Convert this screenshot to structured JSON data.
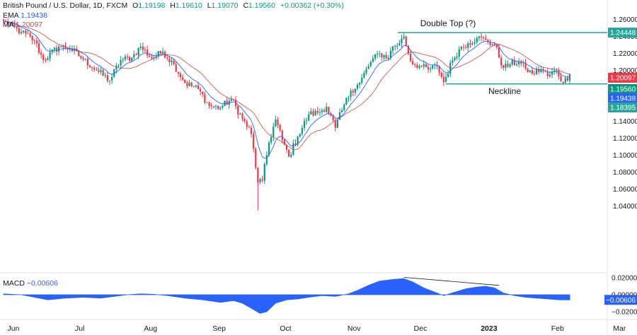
{
  "header": {
    "symbol": "British Pound / U.S. Dollar, 1D, FXCM",
    "o_label": "O",
    "o": "1.19198",
    "h_label": "H",
    "h": "1.19610",
    "l_label": "L",
    "l": "1.19070",
    "c_label": "C",
    "c": "1.19560",
    "change": "+0.00362 (+0.30%)",
    "ema_label": "EMA",
    "ema_value": "1.19438",
    "ma_label": "MA",
    "ma_value": "1.20097"
  },
  "macd": {
    "label": "MACD",
    "value": "−0.00606"
  },
  "colors": {
    "up": "#089981",
    "down": "#f23645",
    "ema": "#2962ff",
    "ma": "#c0504d",
    "teal": "#26a69a",
    "macd_fill": "#2962ff"
  },
  "chart_data": [
    {
      "type": "candlestick",
      "title": "British Pound / U.S. Dollar, 1D, FXCM",
      "price_axis": {
        "ylim": [
          1.03,
          1.27
        ],
        "ticks": [
          "1.26000",
          "1.24000",
          "1.22000",
          "1.20000",
          "1.18000",
          "1.16000",
          "1.14000",
          "1.12000",
          "1.10000",
          "1.08000",
          "1.06000",
          "1.04000"
        ]
      },
      "time_axis": {
        "labels": [
          "Jun",
          "Jul",
          "Aug",
          "Sep",
          "Oct",
          "Nov",
          "Dec",
          "2023",
          "Feb",
          "Mar"
        ]
      },
      "price_tags": [
        {
          "text": "1.24448",
          "value": 1.24448,
          "color": "#26a69a"
        },
        {
          "text": "1.20097",
          "value": 1.20097,
          "color": "#f23645"
        },
        {
          "text": "1.19560",
          "value": 1.1956,
          "color": "#089981"
        },
        {
          "text": "1.19438",
          "value": 1.19438,
          "color": "#2962ff"
        },
        {
          "text": "1.18395",
          "value": 1.18395,
          "color": "#26a69a"
        }
      ],
      "annotations": [
        {
          "text": "Double Top (?)",
          "level": 1.24448
        },
        {
          "text": "Neckline",
          "level": 1.18395
        }
      ],
      "series": [
        {
          "name": "EMA",
          "value": 1.19438
        },
        {
          "name": "MA",
          "value": 1.20097
        }
      ],
      "anchors": [
        {
          "d": 0,
          "c": 1.258
        },
        {
          "d": 8,
          "c": 1.245
        },
        {
          "d": 14,
          "c": 1.235
        },
        {
          "d": 18,
          "c": 1.212
        },
        {
          "d": 25,
          "c": 1.228
        },
        {
          "d": 30,
          "c": 1.226
        },
        {
          "d": 36,
          "c": 1.213
        },
        {
          "d": 42,
          "c": 1.2
        },
        {
          "d": 48,
          "c": 1.188
        },
        {
          "d": 53,
          "c": 1.212
        },
        {
          "d": 58,
          "c": 1.215
        },
        {
          "d": 62,
          "c": 1.228
        },
        {
          "d": 67,
          "c": 1.214
        },
        {
          "d": 72,
          "c": 1.222
        },
        {
          "d": 77,
          "c": 1.207
        },
        {
          "d": 82,
          "c": 1.185
        },
        {
          "d": 88,
          "c": 1.178
        },
        {
          "d": 93,
          "c": 1.158
        },
        {
          "d": 98,
          "c": 1.156
        },
        {
          "d": 103,
          "c": 1.166
        },
        {
          "d": 108,
          "c": 1.143
        },
        {
          "d": 112,
          "c": 1.125
        },
        {
          "d": 115,
          "c": 1.068
        },
        {
          "d": 117,
          "c": 1.07
        },
        {
          "d": 120,
          "c": 1.115
        },
        {
          "d": 123,
          "c": 1.142
        },
        {
          "d": 126,
          "c": 1.118
        },
        {
          "d": 129,
          "c": 1.098
        },
        {
          "d": 133,
          "c": 1.122
        },
        {
          "d": 138,
          "c": 1.148
        },
        {
          "d": 142,
          "c": 1.15
        },
        {
          "d": 146,
          "c": 1.157
        },
        {
          "d": 150,
          "c": 1.132
        },
        {
          "d": 153,
          "c": 1.153
        },
        {
          "d": 157,
          "c": 1.176
        },
        {
          "d": 161,
          "c": 1.185
        },
        {
          "d": 166,
          "c": 1.21
        },
        {
          "d": 170,
          "c": 1.22
        },
        {
          "d": 174,
          "c": 1.215
        },
        {
          "d": 176,
          "c": 1.228
        },
        {
          "d": 179,
          "c": 1.232
        },
        {
          "d": 181,
          "c": 1.24
        },
        {
          "d": 184,
          "c": 1.211
        },
        {
          "d": 188,
          "c": 1.205
        },
        {
          "d": 192,
          "c": 1.201
        },
        {
          "d": 196,
          "c": 1.205
        },
        {
          "d": 199,
          "c": 1.186
        },
        {
          "d": 203,
          "c": 1.212
        },
        {
          "d": 206,
          "c": 1.225
        },
        {
          "d": 210,
          "c": 1.232
        },
        {
          "d": 214,
          "c": 1.238
        },
        {
          "d": 218,
          "c": 1.236
        },
        {
          "d": 222,
          "c": 1.23
        },
        {
          "d": 226,
          "c": 1.203
        },
        {
          "d": 229,
          "c": 1.207
        },
        {
          "d": 233,
          "c": 1.21
        },
        {
          "d": 236,
          "c": 1.202
        },
        {
          "d": 239,
          "c": 1.196
        },
        {
          "d": 243,
          "c": 1.201
        },
        {
          "d": 246,
          "c": 1.193
        },
        {
          "d": 250,
          "c": 1.2
        },
        {
          "d": 253,
          "c": 1.185
        },
        {
          "d": 256,
          "c": 1.1956
        }
      ]
    },
    {
      "type": "area",
      "title": "MACD",
      "ylim": [
        -0.025,
        0.022
      ],
      "ticks": [
        "0.02000",
        "0.00000",
        "−0.02000"
      ],
      "value_tag": {
        "text": "−0.00606",
        "value": -0.00606
      },
      "points": [
        {
          "d": 0,
          "v": 0.001
        },
        {
          "d": 8,
          "v": 0.0
        },
        {
          "d": 14,
          "v": -0.003
        },
        {
          "d": 20,
          "v": -0.006
        },
        {
          "d": 28,
          "v": -0.004
        },
        {
          "d": 36,
          "v": -0.003
        },
        {
          "d": 44,
          "v": -0.004
        },
        {
          "d": 50,
          "v": -0.002
        },
        {
          "d": 56,
          "v": 0.0
        },
        {
          "d": 62,
          "v": 0.001
        },
        {
          "d": 68,
          "v": 0.0005
        },
        {
          "d": 74,
          "v": -0.001
        },
        {
          "d": 82,
          "v": -0.004
        },
        {
          "d": 90,
          "v": -0.006
        },
        {
          "d": 98,
          "v": -0.009
        },
        {
          "d": 104,
          "v": -0.007
        },
        {
          "d": 108,
          "v": -0.01
        },
        {
          "d": 112,
          "v": -0.016
        },
        {
          "d": 116,
          "v": -0.022
        },
        {
          "d": 119,
          "v": -0.02
        },
        {
          "d": 123,
          "v": -0.01
        },
        {
          "d": 128,
          "v": -0.006
        },
        {
          "d": 133,
          "v": -0.005
        },
        {
          "d": 138,
          "v": -0.003
        },
        {
          "d": 144,
          "v": -0.001
        },
        {
          "d": 150,
          "v": -0.002
        },
        {
          "d": 156,
          "v": 0.001
        },
        {
          "d": 160,
          "v": 0.005
        },
        {
          "d": 165,
          "v": 0.011
        },
        {
          "d": 170,
          "v": 0.016
        },
        {
          "d": 176,
          "v": 0.018
        },
        {
          "d": 181,
          "v": 0.019
        },
        {
          "d": 185,
          "v": 0.015
        },
        {
          "d": 190,
          "v": 0.008
        },
        {
          "d": 195,
          "v": 0.003
        },
        {
          "d": 199,
          "v": -0.001
        },
        {
          "d": 204,
          "v": 0.003
        },
        {
          "d": 209,
          "v": 0.007
        },
        {
          "d": 214,
          "v": 0.009
        },
        {
          "d": 218,
          "v": 0.01
        },
        {
          "d": 222,
          "v": 0.008
        },
        {
          "d": 226,
          "v": 0.002
        },
        {
          "d": 231,
          "v": -0.001
        },
        {
          "d": 236,
          "v": -0.003
        },
        {
          "d": 241,
          "v": -0.004
        },
        {
          "d": 246,
          "v": -0.005
        },
        {
          "d": 251,
          "v": -0.006
        },
        {
          "d": 256,
          "v": -0.00606
        }
      ]
    }
  ]
}
